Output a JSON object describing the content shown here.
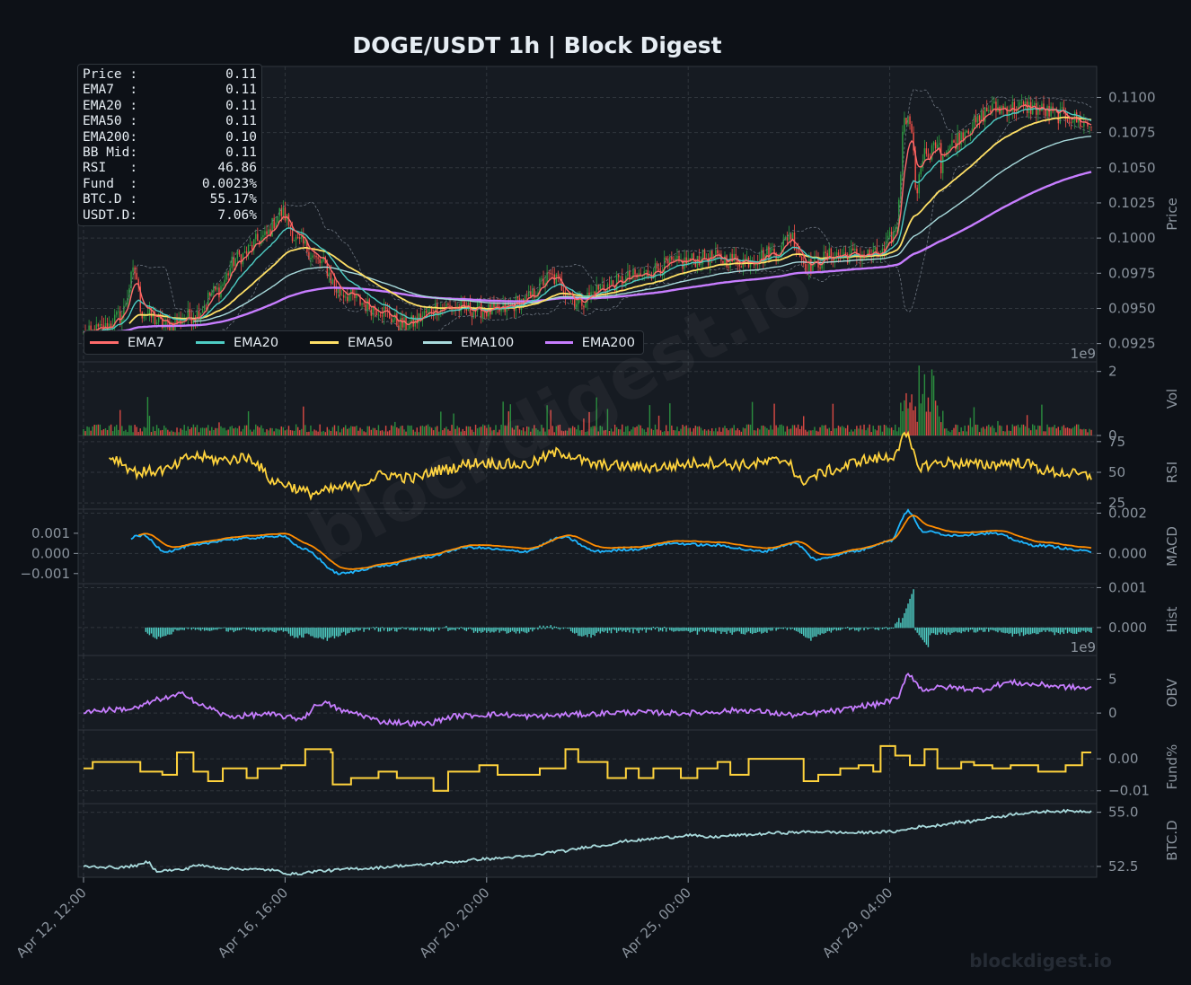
{
  "title": "DOGE/USDT  1h  |  Block Digest",
  "watermark": "blockdigest.io",
  "watermark_footer": "blockdigest.io",
  "colors": {
    "background": "#0d1117",
    "panel": "#161b22",
    "up": "#2ea043",
    "down": "#f85149",
    "ema7": "#ff6b6b",
    "ema20": "#4ecdc4",
    "ema50": "#ffe066",
    "ema100": "#a8dadc",
    "ema200": "#c77dff",
    "rsi": "#ffd33d",
    "macd": "#1fb6ff",
    "signal": "#ff8c00",
    "hist": "#4ecdc4",
    "obv": "#c77dff",
    "fund": "#ffd33d",
    "btcd": "#a8dadc"
  },
  "info_box": [
    {
      "label": "Price :",
      "value": "0.11"
    },
    {
      "label": "EMA7  :",
      "value": "0.11"
    },
    {
      "label": "EMA20 :",
      "value": "0.11"
    },
    {
      "label": "EMA50 :",
      "value": "0.11"
    },
    {
      "label": "EMA200:",
      "value": "0.10"
    },
    {
      "label": "BB Mid:",
      "value": "0.11"
    },
    {
      "label": "RSI   :",
      "value": "46.86"
    },
    {
      "label": "Fund  :",
      "value": "0.0023%"
    },
    {
      "label": "BTC.D :",
      "value": "55.17%"
    },
    {
      "label": "USDT.D:",
      "value": "7.06%"
    }
  ],
  "legend": [
    "EMA7",
    "EMA20",
    "EMA50",
    "EMA100",
    "EMA200"
  ],
  "chart_data": {
    "type": "line",
    "x_ticks": [
      "Apr 12, 12:00",
      "Apr 16, 16:00",
      "Apr 20, 20:00",
      "Apr 25, 00:00",
      "Apr 29, 04:00"
    ],
    "panels": [
      {
        "name": "price",
        "ylabel": "Price",
        "ylim": [
          0.0912,
          0.1122
        ],
        "ticks": [
          "0.0925",
          "0.0950",
          "0.0975",
          "0.1000",
          "0.1025",
          "0.1050",
          "0.1075",
          "0.1100"
        ],
        "tick_values": [
          0.0925,
          0.095,
          0.0975,
          0.1,
          0.1025,
          0.105,
          0.1075,
          0.11
        ],
        "offset_text": "1e9"
      },
      {
        "name": "volume",
        "ylabel": "Vol",
        "ylim": [
          0,
          2.3
        ],
        "ticks": [
          "0",
          "2"
        ],
        "tick_values": [
          0,
          2
        ]
      },
      {
        "name": "rsi",
        "ylabel": "RSI",
        "ylim": [
          20,
          80
        ],
        "ticks": [
          "25",
          "50",
          "75"
        ],
        "tick_values": [
          25,
          50,
          75
        ]
      },
      {
        "name": "macd",
        "ylabel": "MACD",
        "ylim": [
          -0.0015,
          0.0022
        ],
        "ticks": [
          "0.000",
          "0.002"
        ],
        "tick_values": [
          0,
          0.002
        ],
        "left_ticks": [
          "0.001",
          "0.000",
          "−0.001"
        ],
        "left_tick_values": [
          0.001,
          0,
          -0.001
        ]
      },
      {
        "name": "hist",
        "ylabel": "Hist",
        "ylim": [
          -0.0007,
          0.0011
        ],
        "ticks": [
          "0.000",
          "0.001"
        ],
        "tick_values": [
          0,
          0.001
        ],
        "offset_text": "1e9"
      },
      {
        "name": "obv",
        "ylabel": "OBV",
        "ylim": [
          -2.5,
          8.5
        ],
        "ticks": [
          "0",
          "5"
        ],
        "tick_values": [
          0,
          5
        ]
      },
      {
        "name": "fund",
        "ylabel": "Fund%",
        "ylim": [
          -0.014,
          0.009
        ],
        "ticks": [
          "−0.01",
          "0.00"
        ],
        "tick_values": [
          -0.01,
          0
        ]
      },
      {
        "name": "btcd",
        "ylabel": "BTC.D",
        "ylim": [
          52.0,
          55.4
        ],
        "ticks": [
          "52.5",
          "55.0"
        ],
        "tick_values": [
          52.5,
          55.0
        ]
      }
    ],
    "price_anchors": [
      [
        0,
        0.0931
      ],
      [
        10,
        0.0935
      ],
      [
        20,
        0.0944
      ],
      [
        28,
        0.0976
      ],
      [
        32,
        0.0947
      ],
      [
        45,
        0.0938
      ],
      [
        60,
        0.0945
      ],
      [
        72,
        0.0962
      ],
      [
        85,
        0.0987
      ],
      [
        98,
        0.1
      ],
      [
        108,
        0.1018
      ],
      [
        118,
        0.0996
      ],
      [
        130,
        0.0982
      ],
      [
        140,
        0.0961
      ],
      [
        160,
        0.095
      ],
      [
        175,
        0.0938
      ],
      [
        195,
        0.0951
      ],
      [
        225,
        0.0948
      ],
      [
        240,
        0.0955
      ],
      [
        255,
        0.0972
      ],
      [
        270,
        0.0955
      ],
      [
        285,
        0.0966
      ],
      [
        300,
        0.0972
      ],
      [
        320,
        0.0981
      ],
      [
        340,
        0.0986
      ],
      [
        360,
        0.0984
      ],
      [
        380,
        0.0991
      ],
      [
        385,
        0.1003
      ],
      [
        395,
        0.098
      ],
      [
        410,
        0.0988
      ],
      [
        435,
        0.0988
      ],
      [
        443,
        0.1004
      ],
      [
        449,
        0.1095
      ],
      [
        455,
        0.104
      ],
      [
        462,
        0.106
      ],
      [
        470,
        0.1063
      ],
      [
        485,
        0.108
      ],
      [
        495,
        0.1092
      ],
      [
        515,
        0.1093
      ],
      [
        535,
        0.1087
      ],
      [
        550,
        0.108
      ]
    ],
    "rsi_anchors": [
      [
        0,
        55
      ],
      [
        15,
        62
      ],
      [
        30,
        50
      ],
      [
        45,
        52
      ],
      [
        60,
        63
      ],
      [
        75,
        60
      ],
      [
        90,
        62
      ],
      [
        105,
        42
      ],
      [
        125,
        33
      ],
      [
        145,
        38
      ],
      [
        165,
        48
      ],
      [
        180,
        45
      ],
      [
        195,
        52
      ],
      [
        215,
        58
      ],
      [
        240,
        56
      ],
      [
        260,
        66
      ],
      [
        280,
        56
      ],
      [
        310,
        54
      ],
      [
        340,
        58
      ],
      [
        360,
        56
      ],
      [
        385,
        60
      ],
      [
        390,
        43
      ],
      [
        410,
        52
      ],
      [
        425,
        60
      ],
      [
        440,
        62
      ],
      [
        449,
        79
      ],
      [
        456,
        55
      ],
      [
        470,
        58
      ],
      [
        490,
        56
      ],
      [
        510,
        58
      ],
      [
        530,
        50
      ],
      [
        550,
        47
      ]
    ],
    "macd_anchors": [
      [
        0,
        0.0001
      ],
      [
        20,
        0.0006
      ],
      [
        32,
        0.0009
      ],
      [
        45,
        0.0001
      ],
      [
        60,
        0.0004
      ],
      [
        80,
        0.0007
      ],
      [
        100,
        0.0008
      ],
      [
        108,
        0.0009
      ],
      [
        120,
        0.0002
      ],
      [
        140,
        -0.001
      ],
      [
        165,
        -0.0006
      ],
      [
        185,
        -0.0002
      ],
      [
        210,
        0.0003
      ],
      [
        240,
        0.0001
      ],
      [
        262,
        0.0008
      ],
      [
        280,
        0.0001
      ],
      [
        300,
        0.0002
      ],
      [
        320,
        0.0005
      ],
      [
        345,
        0.0004
      ],
      [
        370,
        0.0001
      ],
      [
        388,
        0.0005
      ],
      [
        400,
        -0.0003
      ],
      [
        420,
        0.0001
      ],
      [
        440,
        0.0006
      ],
      [
        450,
        0.0021
      ],
      [
        458,
        0.0011
      ],
      [
        475,
        0.0009
      ],
      [
        495,
        0.001
      ],
      [
        520,
        0.0004
      ],
      [
        550,
        0.0001
      ]
    ],
    "obv_anchors": [
      [
        0,
        0.3
      ],
      [
        25,
        0.6
      ],
      [
        45,
        2.2
      ],
      [
        55,
        2.8
      ],
      [
        65,
        1.0
      ],
      [
        80,
        -0.5
      ],
      [
        100,
        -0.2
      ],
      [
        118,
        -0.8
      ],
      [
        130,
        1.5
      ],
      [
        145,
        0.1
      ],
      [
        165,
        -1.3
      ],
      [
        185,
        -1.6
      ],
      [
        205,
        -0.4
      ],
      [
        225,
        -0.2
      ],
      [
        245,
        -0.5
      ],
      [
        270,
        -0.2
      ],
      [
        295,
        0.1
      ],
      [
        330,
        0.0
      ],
      [
        360,
        0.4
      ],
      [
        390,
        -0.3
      ],
      [
        410,
        0.3
      ],
      [
        430,
        1.2
      ],
      [
        444,
        2.0
      ],
      [
        450,
        5.8
      ],
      [
        458,
        3.5
      ],
      [
        470,
        3.8
      ],
      [
        490,
        3.5
      ],
      [
        505,
        4.5
      ],
      [
        520,
        4.2
      ],
      [
        540,
        3.8
      ],
      [
        550,
        3.6
      ]
    ],
    "fund_steps": [
      [
        0,
        -0.003
      ],
      [
        5,
        -0.001
      ],
      [
        30,
        -0.001
      ],
      [
        31,
        -0.004
      ],
      [
        43,
        -0.005
      ],
      [
        50,
        -0.005
      ],
      [
        51,
        0.002
      ],
      [
        59,
        0.002
      ],
      [
        60,
        -0.004
      ],
      [
        67,
        -0.004
      ],
      [
        68,
        -0.007
      ],
      [
        75,
        -0.007
      ],
      [
        76,
        -0.003
      ],
      [
        88,
        -0.003
      ],
      [
        89,
        -0.006
      ],
      [
        94,
        -0.006
      ],
      [
        95,
        -0.003
      ],
      [
        108,
        -0.002
      ],
      [
        120,
        -0.002
      ],
      [
        121,
        0.003
      ],
      [
        135,
        0.002
      ],
      [
        136,
        -0.008
      ],
      [
        145,
        -0.008
      ],
      [
        146,
        -0.006
      ],
      [
        160,
        -0.006
      ],
      [
        161,
        -0.004
      ],
      [
        170,
        -0.004
      ],
      [
        171,
        -0.006
      ],
      [
        190,
        -0.006
      ],
      [
        191,
        -0.01
      ],
      [
        198,
        -0.01
      ],
      [
        199,
        -0.004
      ],
      [
        215,
        -0.004
      ],
      [
        216,
        -0.002
      ],
      [
        225,
        -0.002
      ],
      [
        226,
        -0.005
      ],
      [
        248,
        -0.005
      ],
      [
        249,
        -0.003
      ],
      [
        262,
        -0.003
      ],
      [
        263,
        0.003
      ],
      [
        269,
        0.003
      ],
      [
        270,
        -0.001
      ],
      [
        285,
        -0.001
      ],
      [
        286,
        -0.006
      ],
      [
        295,
        -0.006
      ],
      [
        296,
        -0.003
      ],
      [
        302,
        -0.003
      ],
      [
        303,
        -0.006
      ],
      [
        310,
        -0.006
      ],
      [
        311,
        -0.003
      ],
      [
        325,
        -0.003
      ],
      [
        326,
        -0.006
      ],
      [
        334,
        -0.006
      ],
      [
        335,
        -0.003
      ],
      [
        345,
        -0.003
      ],
      [
        346,
        -0.001
      ],
      [
        352,
        -0.001
      ],
      [
        353,
        -0.005
      ],
      [
        362,
        -0.005
      ],
      [
        363,
        0.0
      ],
      [
        392,
        0.0
      ],
      [
        393,
        -0.007
      ],
      [
        400,
        -0.007
      ],
      [
        401,
        -0.005
      ],
      [
        412,
        -0.005
      ],
      [
        413,
        -0.003
      ],
      [
        422,
        -0.003
      ],
      [
        423,
        -0.002
      ],
      [
        430,
        -0.002
      ],
      [
        431,
        -0.004
      ],
      [
        434,
        -0.004
      ],
      [
        435,
        0.004
      ],
      [
        442,
        0.004
      ],
      [
        443,
        0.001
      ],
      [
        450,
        0.001
      ],
      [
        451,
        -0.002
      ],
      [
        458,
        -0.002
      ],
      [
        459,
        0.003
      ],
      [
        465,
        0.003
      ],
      [
        466,
        -0.003
      ],
      [
        478,
        -0.003
      ],
      [
        479,
        -0.001
      ],
      [
        485,
        -0.001
      ],
      [
        486,
        -0.002
      ],
      [
        495,
        -0.002
      ],
      [
        496,
        -0.003
      ],
      [
        505,
        -0.003
      ],
      [
        506,
        -0.002
      ],
      [
        520,
        -0.002
      ],
      [
        521,
        -0.004
      ],
      [
        535,
        -0.004
      ],
      [
        536,
        -0.002
      ],
      [
        544,
        -0.002
      ],
      [
        545,
        0.002
      ],
      [
        550,
        0.002
      ]
    ],
    "btcd_anchors": [
      [
        0,
        52.5
      ],
      [
        20,
        52.45
      ],
      [
        30,
        52.55
      ],
      [
        35,
        52.7
      ],
      [
        40,
        52.3
      ],
      [
        55,
        52.35
      ],
      [
        60,
        52.55
      ],
      [
        80,
        52.4
      ],
      [
        100,
        52.35
      ],
      [
        115,
        52.15
      ],
      [
        130,
        52.3
      ],
      [
        150,
        52.4
      ],
      [
        180,
        52.55
      ],
      [
        200,
        52.7
      ],
      [
        220,
        52.85
      ],
      [
        240,
        52.95
      ],
      [
        260,
        53.2
      ],
      [
        280,
        53.45
      ],
      [
        300,
        53.7
      ],
      [
        320,
        53.85
      ],
      [
        330,
        53.95
      ],
      [
        340,
        53.85
      ],
      [
        360,
        53.95
      ],
      [
        380,
        54.05
      ],
      [
        400,
        54.1
      ],
      [
        420,
        54.05
      ],
      [
        440,
        54.1
      ],
      [
        460,
        54.35
      ],
      [
        480,
        54.55
      ],
      [
        500,
        54.8
      ],
      [
        510,
        54.95
      ],
      [
        530,
        55.05
      ],
      [
        550,
        55.05
      ]
    ],
    "n_bars": 551
  }
}
